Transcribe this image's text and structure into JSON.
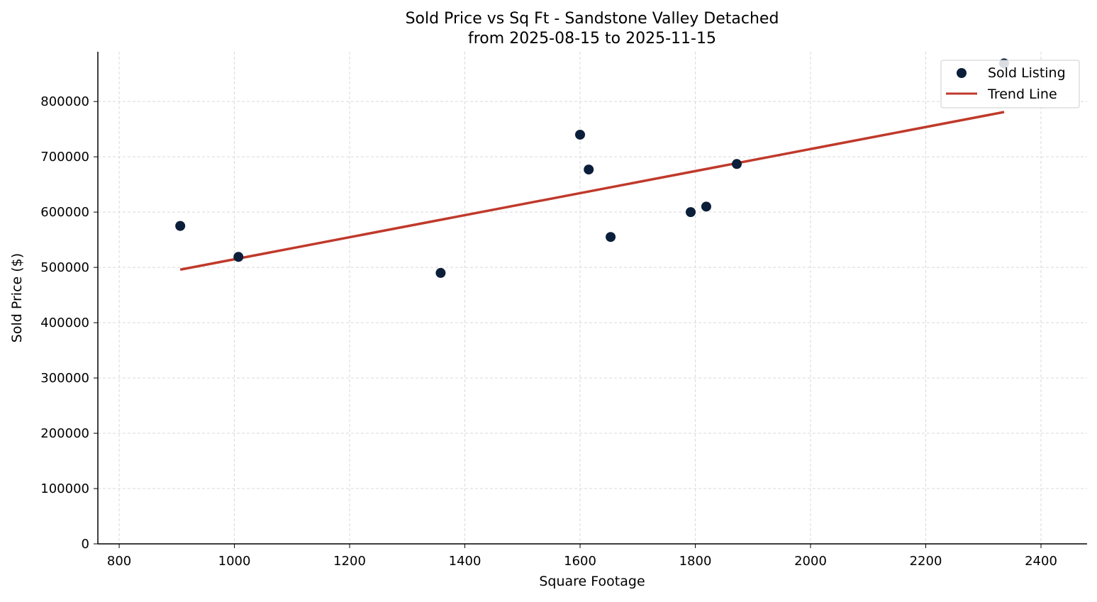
{
  "chart_data": {
    "type": "scatter",
    "title": "Sold Price vs Sq Ft - Sandstone Valley Detached",
    "subtitle": "from 2025-08-15 to 2025-11-15",
    "xlabel": "Square Footage",
    "ylabel": "Sold Price ($)",
    "xlim": [
      763,
      2480
    ],
    "ylim": [
      0,
      890000
    ],
    "xticks": [
      800,
      1000,
      1200,
      1400,
      1600,
      1800,
      2000,
      2200,
      2400
    ],
    "yticks": [
      0,
      100000,
      200000,
      300000,
      400000,
      500000,
      600000,
      700000,
      800000
    ],
    "grid": true,
    "legend_position": "top-right",
    "series": [
      {
        "name": "Sold Listing",
        "kind": "scatter",
        "color": "#0b1e3a",
        "x": [
          906,
          1007,
          1358,
          1600,
          1615,
          1653,
          1792,
          1819,
          1872,
          2336
        ],
        "y": [
          575000,
          519000,
          490000,
          740000,
          677000,
          555000,
          600000,
          610000,
          687000,
          869000
        ]
      },
      {
        "name": "Trend Line",
        "kind": "line",
        "color": "#c0392b",
        "x": [
          906,
          2336
        ],
        "y": [
          496000,
          781000
        ]
      }
    ]
  }
}
